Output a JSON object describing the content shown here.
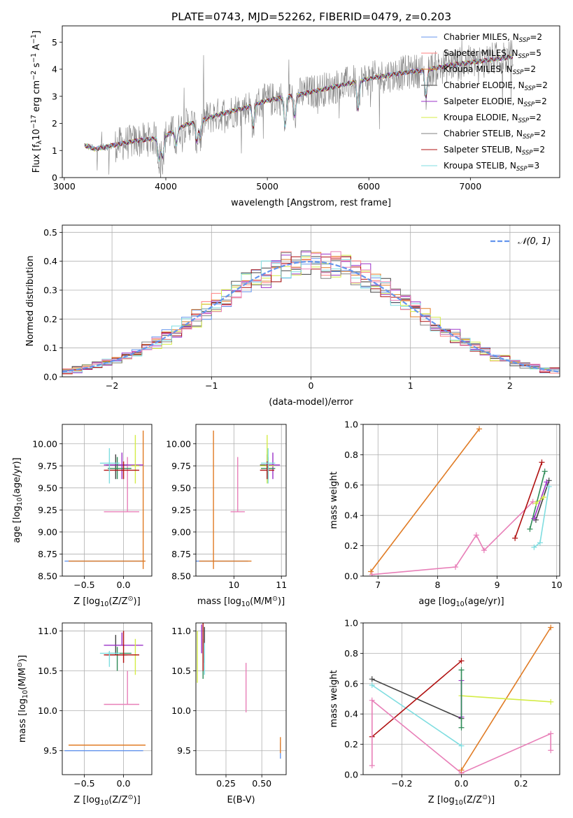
{
  "figure_title": "PLATE=0743, MJD=52262, FIBERID=0479, z=0.203",
  "colors": {
    "chabrier_miles": "#6495ed",
    "salpeter_miles": "#ff7f7f",
    "kroupa_miles": "#e07b24",
    "chabrier_elodie": "#404040",
    "salpeter_elodie": "#9b30c8",
    "kroupa_elodie": "#d4ec46",
    "chabrier_stelib": "#808080",
    "salpeter_stelib": "#b01010",
    "kroupa_stelib": "#7fdde0",
    "pink": "#e87fb8",
    "green": "#2e8b57",
    "normal": "#6495ed"
  },
  "chart_data": [
    {
      "type": "line",
      "id": "spectrum",
      "xlabel": "wavelength [Angstrom, rest frame]",
      "ylabel": "Flux [f",
      "ylabel_parts": [
        "Flux [f",
        "λ",
        "10",
        "−17",
        " erg cm",
        "−2",
        " s",
        "−1",
        " A",
        "−1",
        "]"
      ],
      "xlim": [
        2980,
        7880
      ],
      "ylim": [
        0,
        5.6
      ],
      "xticks": [
        3000,
        4000,
        5000,
        6000,
        7000
      ],
      "yticks": [
        0,
        1,
        2,
        3,
        4,
        5
      ],
      "grid": false,
      "legend_position": "top-right",
      "legend": [
        {
          "name": "Chabrier MILES, N",
          "sub": "SSP",
          "val": "=2",
          "color": "chabrier_miles"
        },
        {
          "name": "Salpeter MILES, N",
          "sub": "SSP",
          "val": "=5",
          "color": "salpeter_miles"
        },
        {
          "name": "Kroupa MILES, N",
          "sub": "SSP",
          "val": "=2",
          "color": "kroupa_miles"
        },
        {
          "name": "Chabrier ELODIE, N",
          "sub": "SSP",
          "val": "=2",
          "color": "chabrier_elodie"
        },
        {
          "name": "Salpeter ELODIE, N",
          "sub": "SSP",
          "val": "=2",
          "color": "salpeter_elodie"
        },
        {
          "name": "Kroupa ELODIE, N",
          "sub": "SSP",
          "val": "=2",
          "color": "kroupa_elodie"
        },
        {
          "name": "Chabrier STELIB, N",
          "sub": "SSP",
          "val": "=2",
          "color": "chabrier_stelib"
        },
        {
          "name": "Salpeter STELIB, N",
          "sub": "SSP",
          "val": "=2",
          "color": "salpeter_stelib"
        },
        {
          "name": "Kroupa STELIB, N",
          "sub": "SSP",
          "val": "=3",
          "color": "kroupa_stelib"
        }
      ],
      "continuum_knots": [
        [
          3200,
          1.2
        ],
        [
          3300,
          1.05
        ],
        [
          3500,
          1.2
        ],
        [
          3700,
          1.35
        ],
        [
          3900,
          1.45
        ],
        [
          4000,
          1.55
        ],
        [
          4200,
          1.95
        ],
        [
          4500,
          2.3
        ],
        [
          4800,
          2.6
        ],
        [
          5000,
          2.85
        ],
        [
          5300,
          3.05
        ],
        [
          5600,
          3.3
        ],
        [
          6000,
          3.65
        ],
        [
          6300,
          3.85
        ],
        [
          6600,
          4.0
        ],
        [
          6800,
          4.15
        ],
        [
          7000,
          4.25
        ],
        [
          7200,
          4.35
        ],
        [
          7400,
          4.45
        ]
      ],
      "absorption": [
        [
          3934,
          0.55
        ],
        [
          3969,
          0.5
        ],
        [
          4102,
          0.3
        ],
        [
          4304,
          0.35
        ],
        [
          4341,
          0.3
        ],
        [
          4861,
          0.3
        ],
        [
          5175,
          0.35
        ],
        [
          5270,
          0.25
        ],
        [
          5893,
          0.3
        ],
        [
          6563,
          0.25
        ]
      ]
    },
    {
      "type": "bar",
      "id": "residuals",
      "xlabel": "(data-model)/error",
      "ylabel": "Normed distribution",
      "xlim": [
        -2.5,
        2.5
      ],
      "ylim": [
        0,
        0.525
      ],
      "xticks": [
        -2,
        -1,
        0,
        1,
        2
      ],
      "yticks": [
        0.0,
        0.1,
        0.2,
        0.3,
        0.4,
        0.5
      ],
      "grid": true,
      "bin_width": 0.1,
      "legend": "𝒩(0, 1)",
      "legend_position": "top-right",
      "normal_curve": {
        "mu": 0,
        "sigma": 1
      }
    },
    {
      "type": "scatter",
      "id": "age_vs_Z",
      "xlabel": "Z [log",
      "xlabel_parts": [
        "Z [log",
        "10",
        "(Z/Z",
        "⊙",
        ")]"
      ],
      "ylabel_parts": [
        "age  [log",
        "10",
        "(age/yr)]"
      ],
      "xlim": [
        -0.78,
        0.36
      ],
      "ylim": [
        8.5,
        10.22
      ],
      "xticks": [
        -0.5,
        0.0
      ],
      "xticklabels": [
        "−0.5",
        "0.0"
      ],
      "yticks": [
        8.5,
        8.75,
        9.0,
        9.25,
        9.5,
        9.75,
        10.0
      ],
      "yticklabels": [
        "8.50",
        "8.75",
        "9.00",
        "9.25",
        "9.50",
        "9.75",
        "10.00"
      ],
      "grid": true
    },
    {
      "type": "scatter",
      "id": "age_vs_mass",
      "xlabel_parts": [
        "mass [log",
        "10",
        "(M/M",
        "⊙",
        ")]"
      ],
      "xlim": [
        9.2,
        11.1
      ],
      "ylim": [
        8.5,
        10.22
      ],
      "xticks": [
        10,
        11
      ],
      "xticklabels": [
        "10",
        "11"
      ],
      "yticks": [
        8.5,
        8.75,
        9.0,
        9.25,
        9.5,
        9.75,
        10.0
      ],
      "yticklabels": [
        "8.50",
        "8.75",
        "9.00",
        "9.25",
        "9.50",
        "9.75",
        "10.00"
      ],
      "grid": true
    },
    {
      "type": "line",
      "id": "weight_vs_age",
      "xlabel_parts": [
        "age  [log",
        "10",
        "(age/yr)]"
      ],
      "ylabel": "mass weight",
      "xlim": [
        6.75,
        10.05
      ],
      "ylim": [
        0,
        1.0
      ],
      "xticks": [
        7,
        8,
        9,
        10
      ],
      "xticklabels": [
        "7",
        "8",
        "9",
        "10"
      ],
      "yticks": [
        0.0,
        0.2,
        0.4,
        0.6,
        0.8,
        1.0
      ],
      "yticklabels": [
        "0.0",
        "0.2",
        "0.4",
        "0.6",
        "0.8",
        "1.0"
      ],
      "grid": true,
      "series": [
        {
          "color": "kroupa_miles",
          "x": [
            6.88,
            8.7
          ],
          "y": [
            0.03,
            0.97
          ]
        },
        {
          "color": "pink",
          "x": [
            6.9,
            8.3,
            8.65,
            8.78,
            9.6
          ],
          "y": [
            0.01,
            0.06,
            0.27,
            0.17,
            0.49
          ]
        },
        {
          "color": "salpeter_stelib",
          "x": [
            9.3,
            9.75
          ],
          "y": [
            0.25,
            0.75
          ]
        },
        {
          "color": "green",
          "x": [
            9.55,
            9.8
          ],
          "y": [
            0.31,
            0.69
          ]
        },
        {
          "color": "chabrier_elodie",
          "x": [
            9.65,
            9.87
          ],
          "y": [
            0.37,
            0.63
          ]
        },
        {
          "color": "salpeter_elodie",
          "x": [
            9.62,
            9.83
          ],
          "y": [
            0.38,
            0.62
          ]
        },
        {
          "color": "kroupa_stelib",
          "x": [
            9.62,
            9.72,
            9.87
          ],
          "y": [
            0.19,
            0.22,
            0.59
          ]
        },
        {
          "color": "kroupa_elodie",
          "x": [
            9.65,
            9.78
          ],
          "y": [
            0.48,
            0.52
          ]
        }
      ]
    },
    {
      "type": "scatter",
      "id": "mass_vs_Z",
      "xlabel_parts": [
        "Z [log",
        "10",
        "(Z/Z",
        "⊙",
        ")]"
      ],
      "ylabel_parts": [
        "mass [log",
        "10",
        "(M/M",
        "⊙",
        ")]"
      ],
      "xlim": [
        -0.78,
        0.36
      ],
      "ylim": [
        9.2,
        11.1
      ],
      "xticks": [
        -0.5,
        0.0
      ],
      "xticklabels": [
        "−0.5",
        "0.0"
      ],
      "yticks": [
        9.5,
        10.0,
        10.5,
        11.0
      ],
      "yticklabels": [
        "9.5",
        "10.0",
        "10.5",
        "11.0"
      ],
      "grid": true
    },
    {
      "type": "scatter",
      "id": "mass_vs_ebv",
      "xlabel": "E(B-V)",
      "xlim": [
        0.04,
        0.67
      ],
      "ylim": [
        9.2,
        11.1
      ],
      "xticks": [
        0.25,
        0.5
      ],
      "xticklabels": [
        "0.25",
        "0.50"
      ],
      "yticks": [
        9.5,
        10.0,
        10.5,
        11.0
      ],
      "yticklabels": [
        "9.5",
        "10.0",
        "10.5",
        "11.0"
      ],
      "grid": true
    },
    {
      "type": "line",
      "id": "weight_vs_Z",
      "xlabel_parts": [
        "Z [log",
        "10",
        "(Z/Z",
        "⊙",
        ")]"
      ],
      "ylabel": "mass weight",
      "xlim": [
        -0.33,
        0.33
      ],
      "ylim": [
        0,
        1.0
      ],
      "xticks": [
        -0.2,
        0.0,
        0.2
      ],
      "xticklabels": [
        "−0.2",
        "0.0",
        "0.2"
      ],
      "yticks": [
        0.0,
        0.2,
        0.4,
        0.6,
        0.8,
        1.0
      ],
      "yticklabels": [
        "0.0",
        "0.2",
        "0.4",
        "0.6",
        "0.8",
        "1.0"
      ],
      "grid": true,
      "series": [
        {
          "color": "chabrier_elodie",
          "x": [
            -0.3,
            0.0
          ],
          "y": [
            0.63,
            0.37
          ]
        },
        {
          "color": "kroupa_stelib",
          "x": [
            -0.3,
            0.0
          ],
          "y": [
            0.59,
            0.19
          ]
        },
        {
          "color": "salpeter_stelib",
          "x": [
            -0.3,
            0.0
          ],
          "y": [
            0.25,
            0.75
          ]
        },
        {
          "color": "pink",
          "x": [
            -0.3,
            -0.3,
            0.0,
            0.3,
            0.3
          ],
          "y": [
            0.06,
            0.49,
            0.01,
            0.27,
            0.16
          ]
        },
        {
          "color": "kroupa_miles",
          "x": [
            0.0,
            0.3
          ],
          "y": [
            0.03,
            0.97
          ]
        },
        {
          "color": "kroupa_elodie",
          "x": [
            0.0,
            0.3
          ],
          "y": [
            0.52,
            0.48
          ]
        },
        {
          "color": "salpeter_elodie",
          "x": [
            0.0,
            0.0
          ],
          "y": [
            0.38,
            0.62
          ]
        },
        {
          "color": "green",
          "x": [
            0.0,
            0.0
          ],
          "y": [
            0.31,
            0.69
          ]
        }
      ]
    }
  ],
  "ssp_points": {
    "note_free": true,
    "items": [
      {
        "color": "chabrier_miles",
        "Z": -0.75,
        "Z_lo": -0.75,
        "Z_hi": 0.25,
        "age": 8.67,
        "age_lo": 8.67,
        "age_hi": 8.67,
        "mass": 9.5,
        "mass_lo": 9.5,
        "mass_hi": 9.5,
        "ebv": 0.63
      },
      {
        "color": "kroupa_miles",
        "Z": 0.25,
        "Z_lo": -0.7,
        "Z_hi": 0.28,
        "age": 8.67,
        "age_lo": 8.58,
        "age_hi": 10.15,
        "mass": 9.57,
        "mass_lo": 9.57,
        "mass_hi": 9.57,
        "ebv": 0.63
      },
      {
        "color": "pink",
        "Z": 0.05,
        "Z_lo": -0.25,
        "Z_hi": 0.2,
        "age": 9.23,
        "age_lo": 9.23,
        "age_hi": 9.85,
        "mass": 10.08,
        "mass_lo": 10.08,
        "mass_hi": 10.5,
        "ebv": 0.39
      },
      {
        "color": "chabrier_elodie",
        "Z": -0.1,
        "Z_lo": -0.22,
        "Z_hi": 0.05,
        "age": 9.76,
        "age_lo": 9.6,
        "age_hi": 9.88,
        "mass": 10.7,
        "mass_lo": 10.7,
        "mass_hi": 10.95,
        "ebv": 0.1
      },
      {
        "color": "salpeter_elodie",
        "Z": -0.02,
        "Z_lo": -0.25,
        "Z_hi": 0.25,
        "age": 9.76,
        "age_lo": 9.6,
        "age_hi": 9.9,
        "mass": 10.82,
        "mass_lo": 10.82,
        "mass_hi": 10.98,
        "ebv": 0.08
      },
      {
        "color": "kroupa_elodie",
        "Z": 0.15,
        "Z_lo": 0.1,
        "Z_hi": 0.2,
        "age": 9.75,
        "age_lo": 9.55,
        "age_hi": 10.1,
        "mass": 10.7,
        "mass_lo": 10.45,
        "mass_hi": 10.9,
        "ebv": 0.05
      },
      {
        "color": "green",
        "Z": -0.08,
        "Z_lo": -0.2,
        "Z_hi": 0.1,
        "age": 9.72,
        "age_lo": 9.6,
        "age_hi": 9.85,
        "mass": 10.72,
        "mass_lo": 10.5,
        "mass_hi": 10.8,
        "ebv": 0.09
      },
      {
        "color": "salpeter_stelib",
        "Z": 0.0,
        "Z_lo": -0.25,
        "Z_hi": 0.2,
        "age": 9.7,
        "age_lo": 9.6,
        "age_hi": 9.8,
        "mass": 10.7,
        "mass_lo": 10.6,
        "mass_hi": 11.0,
        "ebv": 0.09
      },
      {
        "color": "kroupa_stelib",
        "Z": -0.18,
        "Z_lo": -0.3,
        "Z_hi": -0.05,
        "age": 9.78,
        "age_lo": 9.55,
        "age_hi": 9.95,
        "mass": 10.72,
        "mass_lo": 10.55,
        "mass_hi": 10.75,
        "ebv": 0.1
      }
    ]
  }
}
